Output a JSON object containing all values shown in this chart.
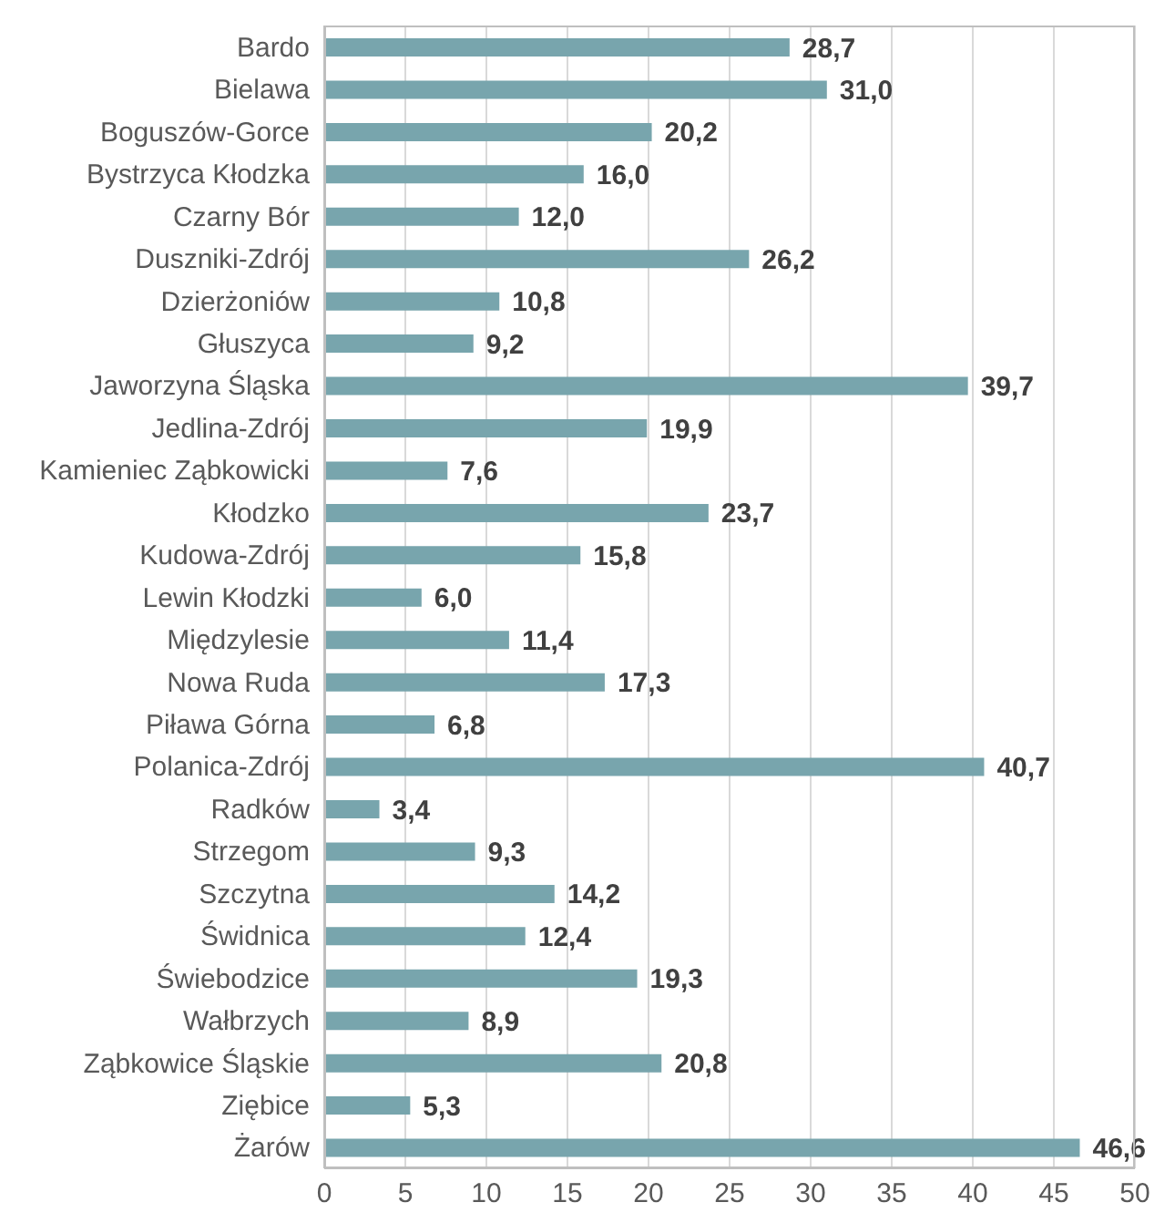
{
  "chart_data": {
    "type": "bar",
    "orientation": "horizontal",
    "categories": [
      "Bardo",
      "Bielawa",
      "Boguszów-Gorce",
      "Bystrzyca Kłodzka",
      "Czarny Bór",
      "Duszniki-Zdrój",
      "Dzierżoniów",
      "Głuszyca",
      "Jaworzyna Śląska",
      "Jedlina-Zdrój",
      "Kamieniec Ząbkowicki",
      "Kłodzko",
      "Kudowa-Zdrój",
      "Lewin Kłodzki",
      "Międzylesie",
      "Nowa Ruda",
      "Piława Górna",
      "Polanica-Zdrój",
      "Radków",
      "Strzegom",
      "Szczytna",
      "Świdnica",
      "Świebodzice",
      "Wałbrzych",
      "Ząbkowice Śląskie",
      "Ziębice",
      "Żarów"
    ],
    "values": [
      28.7,
      31.0,
      20.2,
      16.0,
      12.0,
      26.2,
      10.8,
      9.2,
      39.7,
      19.9,
      7.6,
      23.7,
      15.8,
      6.0,
      11.4,
      17.3,
      6.8,
      40.7,
      3.4,
      9.3,
      14.2,
      12.4,
      19.3,
      8.9,
      20.8,
      5.3,
      46.6
    ],
    "value_labels": [
      "28,7",
      "31,0",
      "20,2",
      "16,0",
      "12,0",
      "26,2",
      "10,8",
      "9,2",
      "39,7",
      "19,9",
      "7,6",
      "23,7",
      "15,8",
      "6,0",
      "11,4",
      "17,3",
      "6,8",
      "40,7",
      "3,4",
      "9,3",
      "14,2",
      "12,4",
      "19,3",
      "8,9",
      "20,8",
      "5,3",
      "46,6"
    ],
    "color": "#78a5ad",
    "xlim": [
      0,
      50
    ],
    "xticks": [
      0,
      5,
      10,
      15,
      20,
      25,
      30,
      35,
      40,
      45,
      50
    ],
    "grid": "x"
  }
}
